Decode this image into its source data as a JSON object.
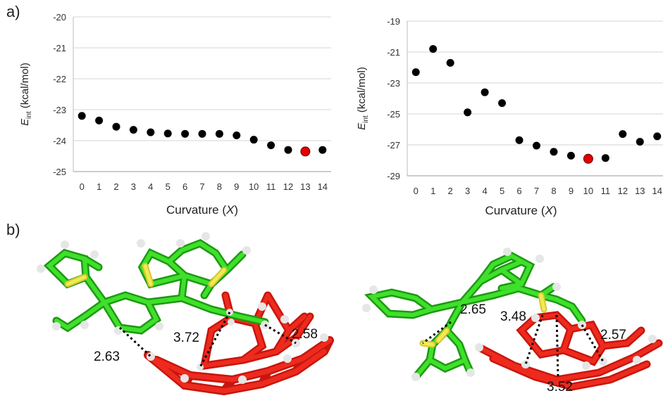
{
  "figure": {
    "label_a": "a)",
    "label_b": "b)"
  },
  "colors": {
    "point": "#000000",
    "highlight": "#e00000",
    "carbon": "#2ed31d",
    "sulfur": "#e8e04a",
    "hydrogen": "#dcdcdc",
    "cnt": "#e51c12"
  },
  "chart_data": [
    {
      "type": "scatter",
      "ylabel_main": "E",
      "ylabel_sub": "int",
      "ylabel_units": " (kcal/mol)",
      "xlabel_main": "Curvature (",
      "xlabel_italic": "X",
      "xlabel_end": ")",
      "ylim": [
        -25,
        -20
      ],
      "yticks": [
        -25,
        -24,
        -23,
        -22,
        -21,
        -20
      ],
      "xticks": [
        0,
        1,
        2,
        3,
        4,
        5,
        6,
        7,
        8,
        9,
        10,
        11,
        12,
        13,
        14
      ],
      "grid": "horizontal",
      "x": [
        0,
        1,
        2,
        3,
        4,
        5,
        6,
        7,
        8,
        9,
        10,
        11,
        12,
        13,
        14
      ],
      "y": [
        -23.2,
        -23.35,
        -23.55,
        -23.65,
        -23.73,
        -23.77,
        -23.78,
        -23.78,
        -23.78,
        -23.83,
        -23.97,
        -24.15,
        -24.3,
        -24.35,
        -24.3
      ],
      "highlight_index": 13
    },
    {
      "type": "scatter",
      "ylabel_main": "E",
      "ylabel_sub": "int",
      "ylabel_units": " (kcal/mol)",
      "xlabel_main": "Curvature (",
      "xlabel_italic": "X",
      "xlabel_end": ")",
      "ylim": [
        -29,
        -19
      ],
      "yticks": [
        -29,
        -27,
        -25,
        -23,
        -21,
        -19
      ],
      "xticks": [
        0,
        1,
        2,
        3,
        4,
        5,
        6,
        7,
        8,
        9,
        10,
        11,
        12,
        13,
        14
      ],
      "grid": "horizontal",
      "x": [
        0,
        1,
        2,
        3,
        4,
        5,
        6,
        7,
        8,
        9,
        10,
        11,
        12,
        13,
        14
      ],
      "y": [
        -22.3,
        -20.8,
        -21.7,
        -24.9,
        -23.6,
        -24.3,
        -26.7,
        -27.05,
        -27.45,
        -27.7,
        -27.9,
        -27.85,
        -26.3,
        -26.8,
        -26.45
      ],
      "highlight_index": 10
    }
  ],
  "structures": {
    "left_distances": [
      "2.63",
      "3.72",
      "2.58"
    ],
    "right_distances": [
      "2.65",
      "3.48",
      "2.57",
      "3.52"
    ]
  }
}
